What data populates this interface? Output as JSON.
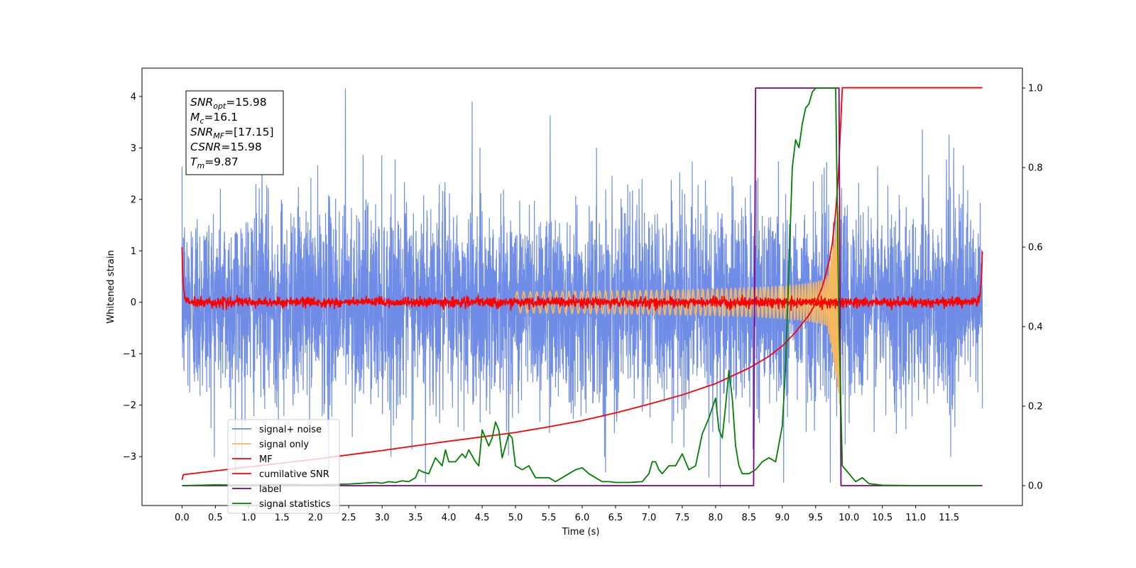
{
  "chart_data": {
    "type": "line",
    "xlabel": "Time (s)",
    "ylabel": "Whitened strain",
    "xlim": [
      -0.6,
      12.6
    ],
    "ylim": [
      -3.95,
      4.55
    ],
    "y2lim": [
      -0.05,
      1.05
    ],
    "xticks": [
      0.0,
      0.5,
      1.0,
      1.5,
      2.0,
      2.5,
      3.0,
      3.5,
      4.0,
      4.5,
      5.0,
      5.5,
      6.0,
      6.5,
      7.0,
      7.5,
      8.0,
      8.5,
      9.0,
      9.5,
      10.0,
      10.5,
      11.0,
      11.5
    ],
    "xtick_labels": [
      "0.0",
      "0.5",
      "1.0",
      "1.5",
      "2.0",
      "2.5",
      "3.0",
      "3.5",
      "4.0",
      "4.5",
      "5.0",
      "5.5",
      "6.0",
      "6.5",
      "7.0",
      "7.5",
      "8.0",
      "8.5",
      "9.0",
      "9.5",
      "10.0",
      "10.5",
      "11.0",
      "11.5"
    ],
    "yticks": [
      -3,
      -2,
      -1,
      0,
      1,
      2,
      3,
      4
    ],
    "ytick_labels": [
      "−3",
      "−2",
      "−1",
      "0",
      "1",
      "2",
      "3",
      "4"
    ],
    "y2ticks": [
      0.0,
      0.2,
      0.4,
      0.6,
      0.8,
      1.0
    ],
    "y2tick_labels": [
      "0.0",
      "0.2",
      "0.4",
      "0.6",
      "0.8",
      "1.0"
    ],
    "grid": false,
    "legend_position": "lower-left",
    "annotation": {
      "lines": [
        {
          "main": "SNR",
          "sub": "opt",
          "rest": "=15.98"
        },
        {
          "main": "M",
          "sub": "c",
          "rest": "=16.1"
        },
        {
          "main": "SNR",
          "sub": "MF",
          "rest": "=[17.15]"
        },
        {
          "main": "CSNR",
          "sub": "",
          "rest": "=15.98"
        },
        {
          "main": "T",
          "sub": "m",
          "rest": "=9.87"
        }
      ]
    },
    "series": [
      {
        "name": "signal+ noise",
        "axis": "left",
        "color": "#6f8de6",
        "style": "noise",
        "x_range": [
          0.0,
          12.0
        ],
        "std": 0.95,
        "spikes": [
          [
            2.45,
            4.15
          ],
          [
            8.07,
            -3.6
          ],
          [
            9.72,
            -3.5
          ],
          [
            9.02,
            -3.5
          ],
          [
            3.65,
            -3.5
          ],
          [
            5.52,
            3.62
          ],
          [
            2.2,
            -3.3
          ],
          [
            0.8,
            -3.3
          ],
          [
            1.2,
            3.3
          ],
          [
            4.35,
            3.9
          ],
          [
            7.9,
            -3.4
          ],
          [
            11.1,
            3.35
          ],
          [
            11.5,
            3.25
          ],
          [
            6.35,
            -3.3
          ]
        ]
      },
      {
        "name": "signal only",
        "axis": "left",
        "color": "#f5b860",
        "style": "chirp",
        "x_range": [
          5.0,
          9.87
        ],
        "peak_amplitude": 2.9,
        "merger_time": 9.87
      },
      {
        "name": "MF",
        "axis": "left",
        "color": "#ff0000",
        "style": "mf",
        "x_range": [
          0.0,
          12.0
        ],
        "edge_values": [
          1.0,
          1.0
        ],
        "std": 0.045
      },
      {
        "name": "cumilative SNR",
        "axis": "left",
        "color": "#ff0000",
        "x": [
          0.0,
          0.02,
          1.0,
          2.0,
          3.0,
          4.0,
          5.0,
          5.5,
          6.0,
          6.5,
          7.0,
          7.5,
          8.0,
          8.5,
          8.8,
          9.0,
          9.2,
          9.4,
          9.5,
          9.6,
          9.7,
          9.75,
          9.8,
          9.84,
          9.87,
          9.9,
          10.0,
          11.0,
          12.0
        ],
        "y": [
          -3.45,
          -3.35,
          -3.2,
          -3.05,
          -2.88,
          -2.7,
          -2.53,
          -2.42,
          -2.3,
          -2.15,
          -1.98,
          -1.8,
          -1.58,
          -1.28,
          -1.05,
          -0.85,
          -0.58,
          -0.25,
          -0.02,
          0.3,
          0.78,
          1.15,
          1.75,
          2.45,
          3.3,
          4.17,
          4.17,
          4.17,
          4.17
        ]
      },
      {
        "name": "label",
        "axis": "right",
        "color": "#800080",
        "x": [
          0.0,
          8.57,
          8.6,
          9.85,
          9.88,
          12.0
        ],
        "y": [
          0.0,
          0.0,
          1.0,
          1.0,
          0.0,
          0.0
        ]
      },
      {
        "name": "signal statistics",
        "axis": "right",
        "color": "#008000",
        "x": [
          0.0,
          0.5,
          1.0,
          1.5,
          2.0,
          2.5,
          2.9,
          3.0,
          3.1,
          3.2,
          3.3,
          3.4,
          3.5,
          3.55,
          3.6,
          3.7,
          3.75,
          3.8,
          3.9,
          3.95,
          4.0,
          4.1,
          4.2,
          4.25,
          4.3,
          4.4,
          4.45,
          4.5,
          4.6,
          4.65,
          4.7,
          4.75,
          4.8,
          4.85,
          4.9,
          4.95,
          5.0,
          5.1,
          5.2,
          5.3,
          5.4,
          5.5,
          5.6,
          5.7,
          5.8,
          5.9,
          6.0,
          6.1,
          6.2,
          6.3,
          6.4,
          6.5,
          6.7,
          6.9,
          7.0,
          7.05,
          7.1,
          7.15,
          7.2,
          7.3,
          7.4,
          7.5,
          7.6,
          7.7,
          7.8,
          7.9,
          8.0,
          8.05,
          8.1,
          8.15,
          8.2,
          8.25,
          8.3,
          8.35,
          8.4,
          8.5,
          8.6,
          8.7,
          8.8,
          8.9,
          9.0,
          9.05,
          9.1,
          9.15,
          9.2,
          9.25,
          9.3,
          9.35,
          9.4,
          9.45,
          9.5,
          9.6,
          9.7,
          9.8,
          9.85,
          9.9,
          10.0,
          10.1,
          10.2,
          10.3,
          10.5,
          11.0,
          11.5,
          11.95
        ],
        "y": [
          0.0,
          0.002,
          0.001,
          0.003,
          0.002,
          0.004,
          0.008,
          0.006,
          0.01,
          0.008,
          0.012,
          0.01,
          0.02,
          0.04,
          0.035,
          0.03,
          0.05,
          0.07,
          0.05,
          0.09,
          0.06,
          0.06,
          0.08,
          0.07,
          0.09,
          0.06,
          0.05,
          0.14,
          0.1,
          0.12,
          0.16,
          0.14,
          0.07,
          0.1,
          0.13,
          0.12,
          0.05,
          0.04,
          0.05,
          0.02,
          0.02,
          0.02,
          0.01,
          0.02,
          0.03,
          0.04,
          0.045,
          0.03,
          0.02,
          0.01,
          0.01,
          0.008,
          0.008,
          0.01,
          0.03,
          0.06,
          0.06,
          0.04,
          0.03,
          0.05,
          0.05,
          0.08,
          0.04,
          0.05,
          0.13,
          0.17,
          0.22,
          0.14,
          0.12,
          0.2,
          0.29,
          0.22,
          0.1,
          0.05,
          0.03,
          0.03,
          0.04,
          0.06,
          0.07,
          0.06,
          0.15,
          0.3,
          0.55,
          0.8,
          0.87,
          0.85,
          0.91,
          0.95,
          0.96,
          0.99,
          1.0,
          1.0,
          1.0,
          1.0,
          0.4,
          0.05,
          0.03,
          0.01,
          0.02,
          0.005,
          0.001,
          0.0,
          0.0,
          0.0
        ]
      }
    ]
  }
}
